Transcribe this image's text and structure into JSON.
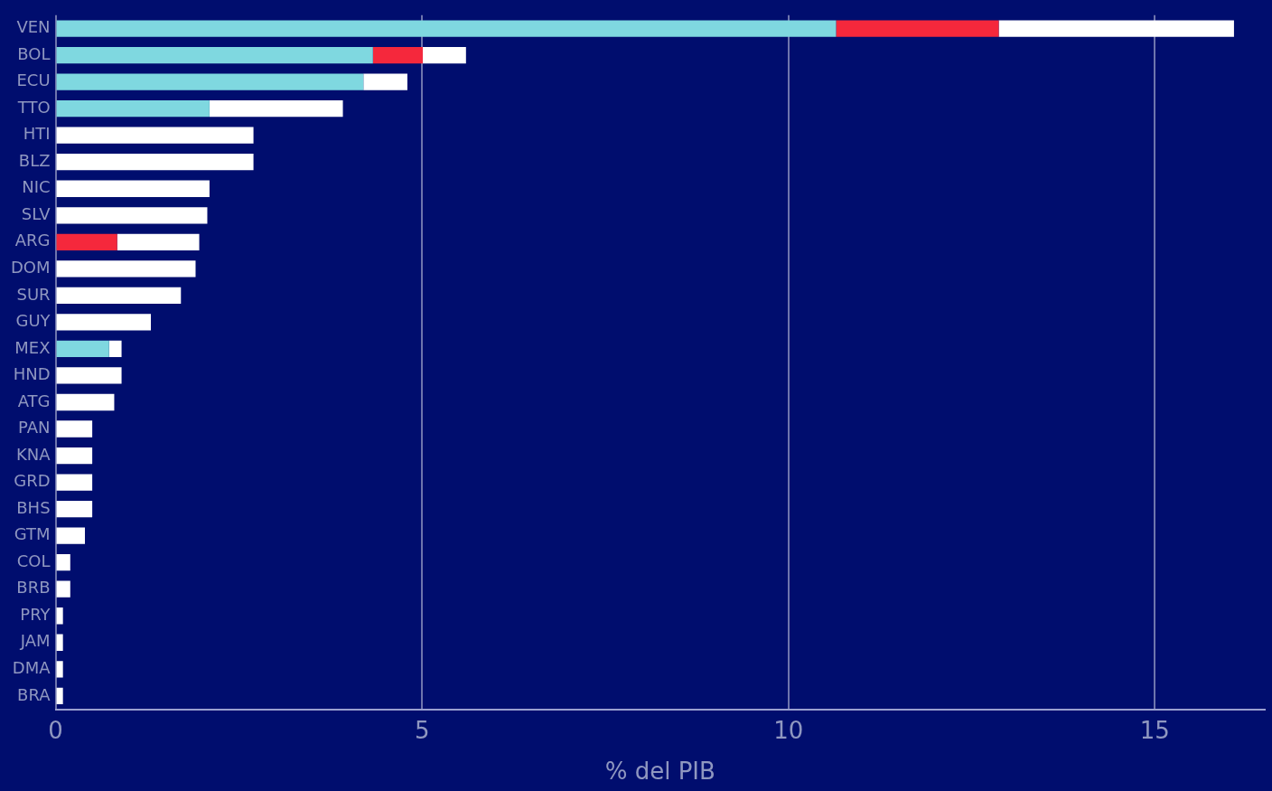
{
  "chart_data": {
    "type": "bar",
    "orientation": "horizontal",
    "stacked": true,
    "xlabel": "% del PIB",
    "categories": [
      "VEN",
      "BOL",
      "ECU",
      "TTO",
      "HTI",
      "BLZ",
      "NIC",
      "SLV",
      "ARG",
      "DOM",
      "SUR",
      "GUY",
      "MEX",
      "HND",
      "ATG",
      "PAN",
      "KNA",
      "GRD",
      "BHS",
      "GTM",
      "COL",
      "BRB",
      "PRY",
      "JAM",
      "DMA",
      "BRA"
    ],
    "series": [
      {
        "color": "#7fd8e0",
        "values": [
          10.65,
          4.33,
          4.2,
          2.1,
          0,
          0,
          0,
          0,
          0,
          0,
          0,
          0,
          0.73,
          0,
          0,
          0,
          0,
          0,
          0,
          0,
          0,
          0,
          0,
          0,
          0,
          0
        ]
      },
      {
        "color": "#f5283c",
        "values": [
          2.22,
          0.68,
          0,
          0,
          0,
          0,
          0,
          0,
          0.84,
          0,
          0,
          0,
          0,
          0,
          0,
          0,
          0,
          0,
          0,
          0,
          0,
          0,
          0,
          0,
          0,
          0
        ]
      },
      {
        "color": "#ffffff",
        "values": [
          3.21,
          0.59,
          0.6,
          1.82,
          2.7,
          2.7,
          2.1,
          2.07,
          1.12,
          1.91,
          1.71,
          1.3,
          0.17,
          0.9,
          0.8,
          0.5,
          0.5,
          0.5,
          0.5,
          0.4,
          0.2,
          0.2,
          0.1,
          0.1,
          0.1,
          0.1
        ]
      }
    ],
    "xlim": [
      0,
      16.5
    ],
    "xticks": [
      0,
      5,
      10,
      15
    ],
    "grid": "x",
    "legend": false
  }
}
